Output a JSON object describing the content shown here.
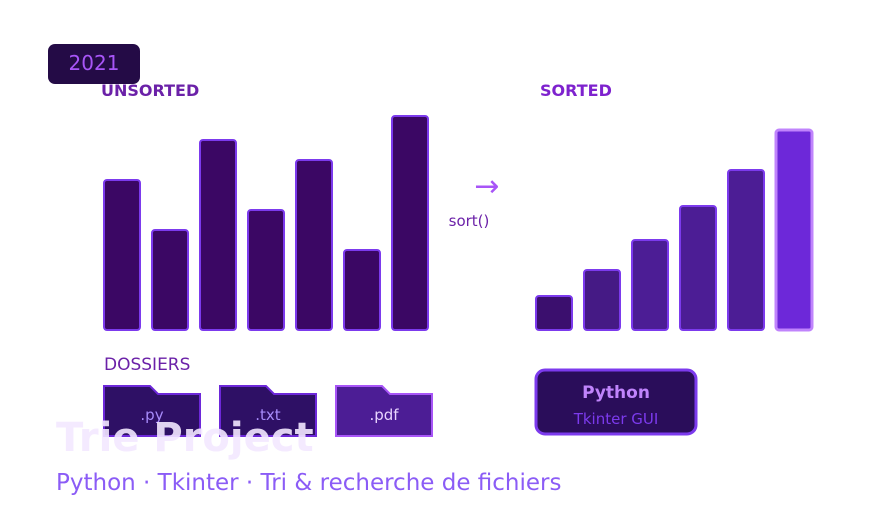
{
  "badge": "2021",
  "unsorted_label": "UNSORTED",
  "sorted_label": "SORTED",
  "arrow": "→",
  "sort_call": "sort()",
  "folders": {
    "title": "DOSSIERS",
    "items": [
      ".py",
      ".txt",
      ".pdf"
    ]
  },
  "tech_box": {
    "title": "Python",
    "subtitle": "Tkinter GUI"
  },
  "title": "Trie Project",
  "subtitle": "Python · Tkinter · Tri & recherche de fichiers"
}
